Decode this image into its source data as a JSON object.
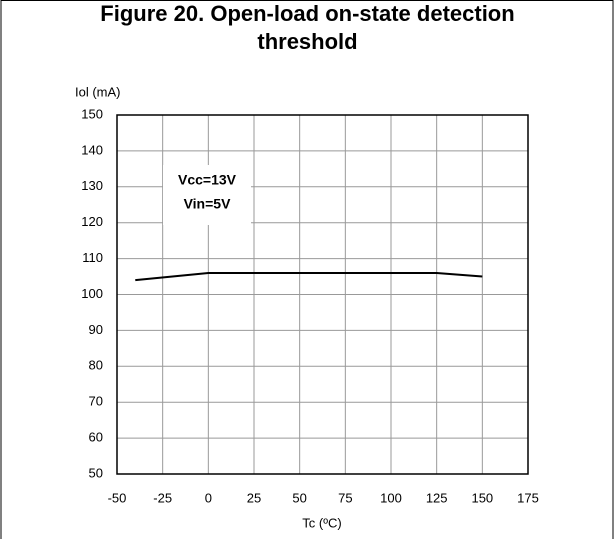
{
  "chart_data": {
    "type": "line",
    "title": "Figure 20. Open-load on-state detection threshold",
    "y_label": "Iol (mA)",
    "x_label": "Tc (ºC)",
    "annotations": [
      "Vcc=13V",
      "Vin=5V"
    ],
    "x": [
      -40,
      0,
      125,
      150
    ],
    "series": [
      {
        "name": "Iol",
        "color": "#000000",
        "values": [
          104,
          106,
          106,
          105
        ]
      }
    ],
    "xlim": [
      -50,
      175
    ],
    "xticks": [
      -50,
      -25,
      0,
      25,
      50,
      75,
      100,
      125,
      150,
      175
    ],
    "ylim": [
      50,
      150
    ],
    "yticks": [
      50,
      60,
      70,
      80,
      90,
      100,
      110,
      120,
      130,
      140,
      150
    ],
    "grid": true
  }
}
